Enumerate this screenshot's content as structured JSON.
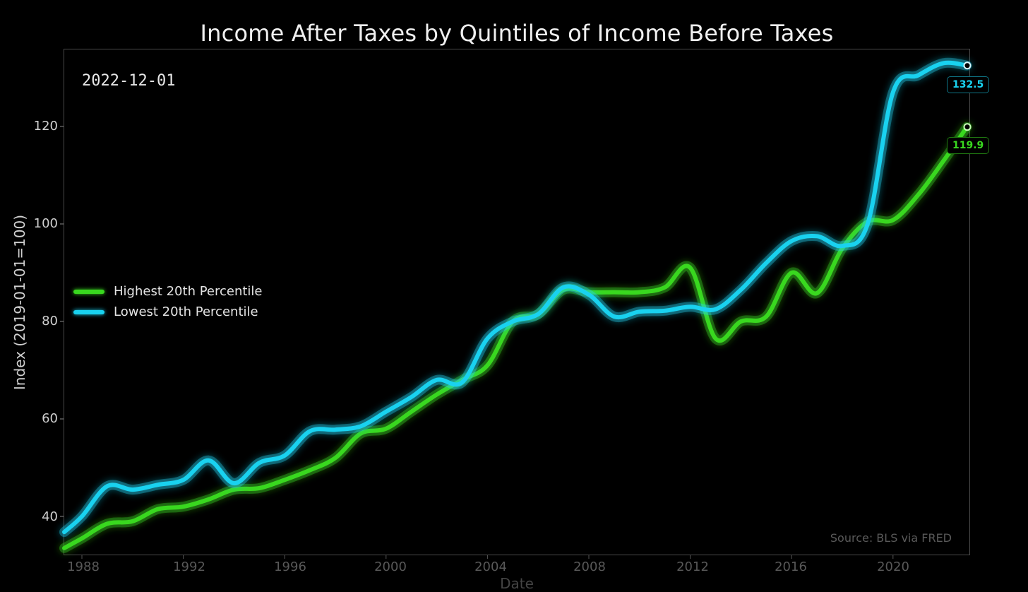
{
  "title": "Income After Taxes by Quintiles of Income Before Taxes",
  "date_stamp": "2022-12-01",
  "source": "Source: BLS via FRED",
  "colors": {
    "highest": "#39d81f",
    "lowest": "#19d2f0",
    "background": "#000000",
    "axis": "#555555"
  },
  "legend": [
    {
      "label": "Highest 20th Percentile",
      "color": "#39d81f"
    },
    {
      "label": "Lowest 20th Percentile",
      "color": "#19d2f0"
    }
  ],
  "end_labels": {
    "lowest": "132.5",
    "highest": "119.9"
  },
  "chart_data": {
    "type": "line",
    "title": "Income After Taxes by Quintiles of Income Before Taxes",
    "xlabel": "Date",
    "ylabel": "Index (2019-01-01=100)",
    "xlim": [
      1987.3,
      2023.0
    ],
    "ylim": [
      32,
      136
    ],
    "x_ticks": [
      "1988",
      "1992",
      "1996",
      "2000",
      "2004",
      "2008",
      "2012",
      "2016",
      "2020"
    ],
    "y_ticks": [
      "40",
      "60",
      "80",
      "100",
      "120"
    ],
    "grid": false,
    "legend_position": "center left",
    "annotation": "2022-12-01",
    "x": [
      1987.3,
      1988,
      1989,
      1990,
      1991,
      1992,
      1993,
      1994,
      1995,
      1996,
      1997,
      1998,
      1999,
      2000,
      2001,
      2002,
      2003,
      2004,
      2005,
      2006,
      2007,
      2008,
      2009,
      2010,
      2011,
      2012,
      2013,
      2014,
      2015,
      2016,
      2017,
      2018,
      2019,
      2020,
      2021,
      2022,
      2022.92
    ],
    "series": [
      {
        "name": "Highest 20th Percentile",
        "color": "#39d81f",
        "values": [
          33.5,
          35.5,
          38.5,
          39,
          41.5,
          42,
          43.5,
          45.5,
          45.8,
          47.5,
          49.5,
          52,
          57,
          58,
          61.5,
          65,
          68,
          71,
          80,
          81.5,
          86.5,
          86,
          86,
          86,
          87,
          91,
          76.5,
          80,
          81,
          90,
          85.8,
          95,
          100.5,
          100.8,
          106,
          113,
          119.9
        ],
        "last_value": 119.9
      },
      {
        "name": "Lowest 20th Percentile",
        "color": "#19d2f0",
        "values": [
          36.8,
          40,
          46.2,
          45.5,
          46.5,
          47.5,
          51.5,
          46.8,
          51,
          52.5,
          57.5,
          57.8,
          58.5,
          61.5,
          64.5,
          68,
          67.5,
          76.5,
          80,
          81.5,
          87,
          85.5,
          81,
          82,
          82.2,
          83,
          82.5,
          86.5,
          92,
          96.5,
          97.5,
          95.5,
          100,
          127,
          130.5,
          133,
          132.5
        ],
        "last_value": 132.5
      }
    ]
  },
  "axes": {
    "ylabel": "Index (2019-01-01=100)",
    "xlabel": "Date",
    "y_ticks": [
      "120",
      "100",
      "80",
      "60",
      "40"
    ],
    "x_ticks": [
      "1988",
      "1992",
      "1996",
      "2000",
      "2004",
      "2008",
      "2012",
      "2016",
      "2020"
    ]
  }
}
